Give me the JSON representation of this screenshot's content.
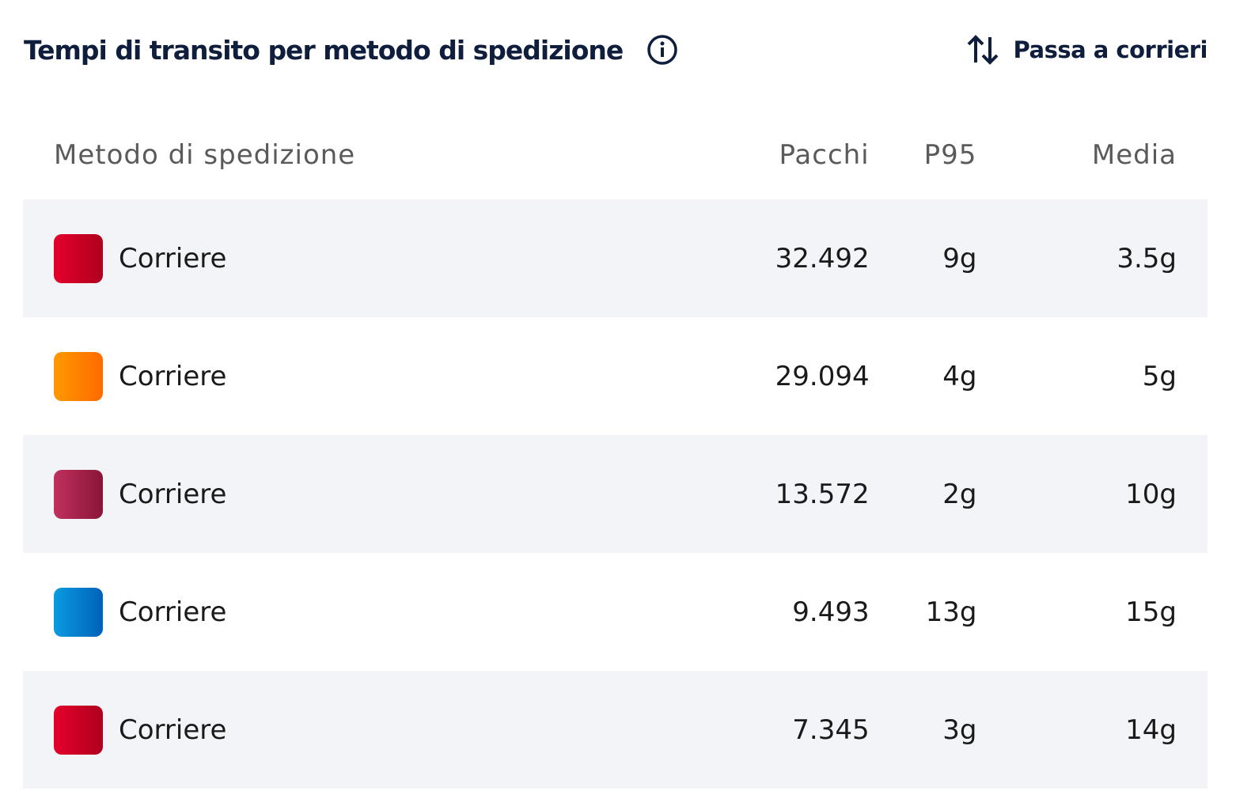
{
  "header": {
    "title": "Tempi di transito per metodo di spedizione",
    "action": "Passa a corrieri"
  },
  "table": {
    "columns": [
      "Metodo di spedizione",
      "Pacchi",
      "P95",
      "Media"
    ],
    "rows": [
      [
        "Corriere",
        "32.492",
        "9g",
        "3.5g"
      ],
      [
        "Corriere",
        "29.094",
        "4g",
        "5g"
      ],
      [
        "Corriere",
        "13.572",
        "2g",
        "10g"
      ],
      [
        "Corriere",
        "9.493",
        "13g",
        "15g"
      ],
      [
        "Corriere",
        "7.345",
        "3g",
        "14g"
      ]
    ],
    "row_colors": [
      [
        "#e4002b",
        "#b0001f"
      ],
      [
        "#ff9900",
        "#ff6a00"
      ],
      [
        "#c0305e",
        "#8a1538"
      ],
      [
        "#0a9be0",
        "#0062b8"
      ],
      [
        "#e4002b",
        "#b0001f"
      ]
    ]
  }
}
